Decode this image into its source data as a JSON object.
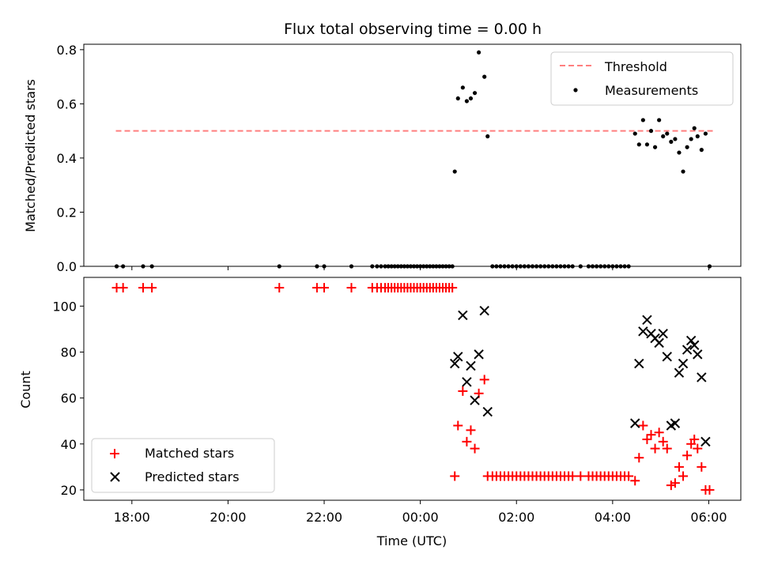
{
  "title": "Flux total observing time = 0.00 h",
  "xlabel": "Time (UTC)",
  "colors": {
    "threshold": "#ff7f7f",
    "measurements": "#000000",
    "matched": "#ff0000",
    "predicted": "#000000"
  },
  "chart_data": [
    {
      "type": "scatter",
      "title": "Flux total observing time = 0.00 h",
      "ylabel": "Matched/Predicted stars",
      "xlabel": "",
      "xlim": [
        "17:00",
        "06:40"
      ],
      "ylim": [
        0,
        0.82
      ],
      "yticks": [
        0.0,
        0.2,
        0.4,
        0.6,
        0.8
      ],
      "ytick_labels": [
        "0.0",
        "0.2",
        "0.4",
        "0.6",
        "0.8"
      ],
      "legend_position": "upper right",
      "threshold": {
        "name": "Threshold",
        "value": 0.5,
        "x_start": "17:40",
        "x_end": "06:05",
        "style": "dashed"
      },
      "series": [
        {
          "name": "Measurements",
          "points": [
            [
              "17:41",
              0.0
            ],
            [
              "17:49",
              0.0
            ],
            [
              "18:14",
              0.0
            ],
            [
              "18:25",
              0.0
            ],
            [
              "21:04",
              0.0
            ],
            [
              "21:51",
              0.0
            ],
            [
              "22:00",
              0.0
            ],
            [
              "22:34",
              0.0
            ],
            [
              "23:00",
              0.0
            ],
            [
              "23:06",
              0.0
            ],
            [
              "23:11",
              0.0
            ],
            [
              "23:16",
              0.0
            ],
            [
              "23:20",
              0.0
            ],
            [
              "23:24",
              0.0
            ],
            [
              "23:28",
              0.0
            ],
            [
              "23:32",
              0.0
            ],
            [
              "23:36",
              0.0
            ],
            [
              "23:40",
              0.0
            ],
            [
              "23:44",
              0.0
            ],
            [
              "23:48",
              0.0
            ],
            [
              "23:52",
              0.0
            ],
            [
              "23:56",
              0.0
            ],
            [
              "00:00",
              0.0
            ],
            [
              "00:04",
              0.0
            ],
            [
              "00:08",
              0.0
            ],
            [
              "00:12",
              0.0
            ],
            [
              "00:16",
              0.0
            ],
            [
              "00:20",
              0.0
            ],
            [
              "00:24",
              0.0
            ],
            [
              "00:28",
              0.0
            ],
            [
              "00:32",
              0.0
            ],
            [
              "00:36",
              0.0
            ],
            [
              "00:40",
              0.0
            ],
            [
              "00:43",
              0.35
            ],
            [
              "00:47",
              0.62
            ],
            [
              "00:53",
              0.66
            ],
            [
              "00:58",
              0.61
            ],
            [
              "01:03",
              0.62
            ],
            [
              "01:08",
              0.64
            ],
            [
              "01:13",
              0.79
            ],
            [
              "01:20",
              0.7
            ],
            [
              "01:24",
              0.48
            ],
            [
              "01:30",
              0.0
            ],
            [
              "01:35",
              0.0
            ],
            [
              "01:40",
              0.0
            ],
            [
              "01:45",
              0.0
            ],
            [
              "01:50",
              0.0
            ],
            [
              "01:55",
              0.0
            ],
            [
              "02:00",
              0.0
            ],
            [
              "02:05",
              0.0
            ],
            [
              "02:10",
              0.0
            ],
            [
              "02:15",
              0.0
            ],
            [
              "02:20",
              0.0
            ],
            [
              "02:25",
              0.0
            ],
            [
              "02:30",
              0.0
            ],
            [
              "02:35",
              0.0
            ],
            [
              "02:40",
              0.0
            ],
            [
              "02:45",
              0.0
            ],
            [
              "02:50",
              0.0
            ],
            [
              "02:55",
              0.0
            ],
            [
              "03:00",
              0.0
            ],
            [
              "03:05",
              0.0
            ],
            [
              "03:10",
              0.0
            ],
            [
              "03:20",
              0.0
            ],
            [
              "03:30",
              0.0
            ],
            [
              "03:35",
              0.0
            ],
            [
              "03:40",
              0.0
            ],
            [
              "03:45",
              0.0
            ],
            [
              "03:50",
              0.0
            ],
            [
              "03:55",
              0.0
            ],
            [
              "04:00",
              0.0
            ],
            [
              "04:05",
              0.0
            ],
            [
              "04:10",
              0.0
            ],
            [
              "04:15",
              0.0
            ],
            [
              "04:20",
              0.0
            ],
            [
              "04:28",
              0.49
            ],
            [
              "04:33",
              0.45
            ],
            [
              "04:38",
              0.54
            ],
            [
              "04:43",
              0.45
            ],
            [
              "04:48",
              0.5
            ],
            [
              "04:53",
              0.44
            ],
            [
              "04:58",
              0.54
            ],
            [
              "05:03",
              0.48
            ],
            [
              "05:08",
              0.49
            ],
            [
              "05:13",
              0.46
            ],
            [
              "05:18",
              0.47
            ],
            [
              "05:23",
              0.42
            ],
            [
              "05:28",
              0.35
            ],
            [
              "05:33",
              0.44
            ],
            [
              "05:38",
              0.47
            ],
            [
              "05:42",
              0.51
            ],
            [
              "05:46",
              0.48
            ],
            [
              "05:51",
              0.43
            ],
            [
              "05:56",
              0.49
            ],
            [
              "06:01",
              0.0
            ]
          ]
        }
      ]
    },
    {
      "type": "scatter",
      "title": "",
      "ylabel": "Count",
      "xlabel": "Time (UTC)",
      "xlim": [
        "17:00",
        "06:40"
      ],
      "ylim": [
        15.5,
        112.5
      ],
      "xtick_labels": [
        "18:00",
        "20:00",
        "22:00",
        "00:00",
        "02:00",
        "04:00",
        "06:00"
      ],
      "yticks": [
        20,
        40,
        60,
        80,
        100
      ],
      "ytick_labels": [
        "20",
        "40",
        "60",
        "80",
        "100"
      ],
      "legend_position": "lower left",
      "series": [
        {
          "name": "Matched stars",
          "marker": "plus",
          "points": [
            [
              "17:41",
              108
            ],
            [
              "17:49",
              108
            ],
            [
              "18:14",
              108
            ],
            [
              "18:25",
              108
            ],
            [
              "21:04",
              108
            ],
            [
              "21:51",
              108
            ],
            [
              "22:00",
              108
            ],
            [
              "22:34",
              108
            ],
            [
              "23:00",
              108
            ],
            [
              "23:06",
              108
            ],
            [
              "23:11",
              108
            ],
            [
              "23:16",
              108
            ],
            [
              "23:20",
              108
            ],
            [
              "23:24",
              108
            ],
            [
              "23:28",
              108
            ],
            [
              "23:32",
              108
            ],
            [
              "23:36",
              108
            ],
            [
              "23:40",
              108
            ],
            [
              "23:44",
              108
            ],
            [
              "23:48",
              108
            ],
            [
              "23:52",
              108
            ],
            [
              "23:56",
              108
            ],
            [
              "00:00",
              108
            ],
            [
              "00:04",
              108
            ],
            [
              "00:08",
              108
            ],
            [
              "00:12",
              108
            ],
            [
              "00:16",
              108
            ],
            [
              "00:20",
              108
            ],
            [
              "00:24",
              108
            ],
            [
              "00:28",
              108
            ],
            [
              "00:32",
              108
            ],
            [
              "00:36",
              108
            ],
            [
              "00:40",
              108
            ],
            [
              "00:43",
              26
            ],
            [
              "00:47",
              48
            ],
            [
              "00:53",
              63
            ],
            [
              "00:58",
              41
            ],
            [
              "01:03",
              46
            ],
            [
              "01:08",
              38
            ],
            [
              "01:13",
              62
            ],
            [
              "01:20",
              68
            ],
            [
              "01:24",
              26
            ],
            [
              "01:30",
              26
            ],
            [
              "01:35",
              26
            ],
            [
              "01:40",
              26
            ],
            [
              "01:45",
              26
            ],
            [
              "01:50",
              26
            ],
            [
              "01:55",
              26
            ],
            [
              "02:00",
              26
            ],
            [
              "02:05",
              26
            ],
            [
              "02:10",
              26
            ],
            [
              "02:15",
              26
            ],
            [
              "02:20",
              26
            ],
            [
              "02:25",
              26
            ],
            [
              "02:30",
              26
            ],
            [
              "02:35",
              26
            ],
            [
              "02:40",
              26
            ],
            [
              "02:45",
              26
            ],
            [
              "02:50",
              26
            ],
            [
              "02:55",
              26
            ],
            [
              "03:00",
              26
            ],
            [
              "03:05",
              26
            ],
            [
              "03:10",
              26
            ],
            [
              "03:20",
              26
            ],
            [
              "03:30",
              26
            ],
            [
              "03:35",
              26
            ],
            [
              "03:40",
              26
            ],
            [
              "03:45",
              26
            ],
            [
              "03:50",
              26
            ],
            [
              "03:55",
              26
            ],
            [
              "04:00",
              26
            ],
            [
              "04:05",
              26
            ],
            [
              "04:10",
              26
            ],
            [
              "04:15",
              26
            ],
            [
              "04:20",
              26
            ],
            [
              "04:28",
              24
            ],
            [
              "04:33",
              34
            ],
            [
              "04:38",
              48
            ],
            [
              "04:43",
              42
            ],
            [
              "04:48",
              44
            ],
            [
              "04:53",
              38
            ],
            [
              "04:58",
              45
            ],
            [
              "05:03",
              41
            ],
            [
              "05:08",
              38
            ],
            [
              "05:13",
              22
            ],
            [
              "05:18",
              23
            ],
            [
              "05:23",
              30
            ],
            [
              "05:28",
              26
            ],
            [
              "05:33",
              35
            ],
            [
              "05:38",
              40
            ],
            [
              "05:42",
              42
            ],
            [
              "05:46",
              38
            ],
            [
              "05:51",
              30
            ],
            [
              "05:56",
              20
            ],
            [
              "06:01",
              20
            ]
          ]
        },
        {
          "name": "Predicted stars",
          "marker": "x",
          "points": [
            [
              "00:43",
              75
            ],
            [
              "00:47",
              78
            ],
            [
              "00:53",
              96
            ],
            [
              "00:58",
              67
            ],
            [
              "01:03",
              74
            ],
            [
              "01:08",
              59
            ],
            [
              "01:13",
              79
            ],
            [
              "01:20",
              98
            ],
            [
              "01:24",
              54
            ],
            [
              "04:28",
              49
            ],
            [
              "04:33",
              75
            ],
            [
              "04:38",
              89
            ],
            [
              "04:43",
              94
            ],
            [
              "04:48",
              88
            ],
            [
              "04:53",
              86
            ],
            [
              "04:58",
              84
            ],
            [
              "05:03",
              88
            ],
            [
              "05:08",
              78
            ],
            [
              "05:13",
              48
            ],
            [
              "05:18",
              49
            ],
            [
              "05:23",
              71
            ],
            [
              "05:28",
              75
            ],
            [
              "05:33",
              81
            ],
            [
              "05:38",
              85
            ],
            [
              "05:42",
              83
            ],
            [
              "05:46",
              79
            ],
            [
              "05:51",
              69
            ],
            [
              "05:56",
              41
            ]
          ]
        }
      ]
    }
  ]
}
